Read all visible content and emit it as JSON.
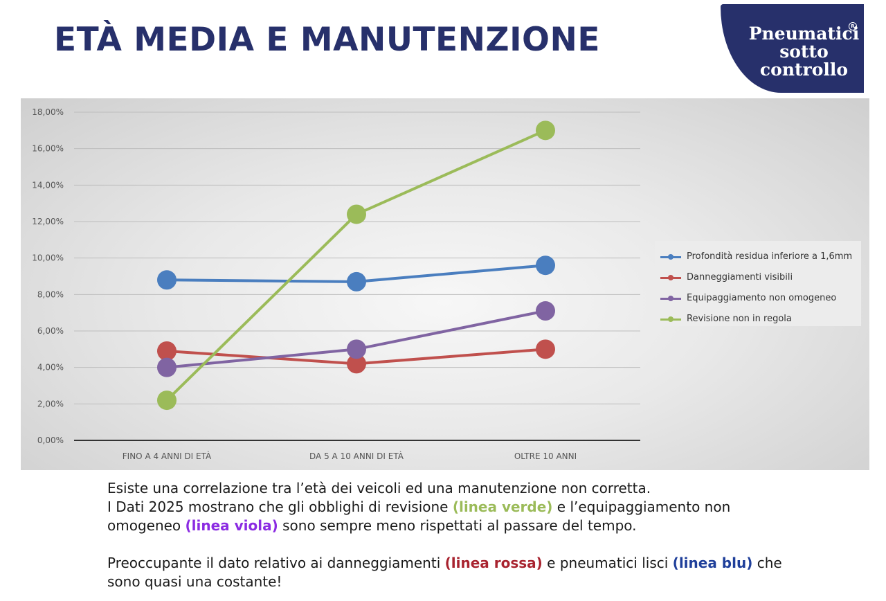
{
  "header": {
    "title": "ETÀ MEDIA E MANUTENZIONE",
    "logo_line1": "Pneumatici",
    "logo_line2": "sotto",
    "logo_line3": "controllo",
    "logo_reg": "R"
  },
  "chart_data": {
    "type": "line",
    "title": "",
    "xlabel": "",
    "ylabel": "",
    "categories": [
      "FINO A 4 ANNI DI ETÀ",
      "DA 5 A 10 ANNI DI ETÀ",
      "OLTRE 10 ANNI"
    ],
    "ylim": [
      0,
      18
    ],
    "yticks": [
      0,
      2,
      4,
      6,
      8,
      10,
      12,
      14,
      16,
      18
    ],
    "ytick_labels": [
      "0,00%",
      "2,00%",
      "4,00%",
      "6,00%",
      "8,00%",
      "10,00%",
      "12,00%",
      "14,00%",
      "16,00%",
      "18,00%"
    ],
    "grid": true,
    "legend_position": "right",
    "series": [
      {
        "name": "Profondità residua inferiore a 1,6mm",
        "color": "#4a7ebf",
        "values": [
          8.8,
          8.7,
          9.6
        ]
      },
      {
        "name": "Danneggiamenti visibili",
        "color": "#c0504d",
        "values": [
          4.9,
          4.2,
          5.0
        ]
      },
      {
        "name": "Equipaggiamento non omogeneo",
        "color": "#8064a2",
        "values": [
          4.0,
          5.0,
          7.1
        ]
      },
      {
        "name": "Revisione non in regola",
        "color": "#9bbb59",
        "values": [
          2.2,
          12.4,
          17.0
        ]
      }
    ]
  },
  "caption": {
    "p1_l1": "Esiste una correlazione tra l’età dei veicoli ed una manutenzione non corretta.",
    "p1_l2a": "I Dati 2025 mostrano che gli obblighi di revisione ",
    "p1_green": "(linea verde)",
    "p1_l2b": " e l’equipaggiamento non omogeneo ",
    "p1_violet": "(linea viola)",
    "p1_l3": " sono sempre meno rispettati al passare del tempo.",
    "p2a": "Preoccupante il dato relativo ai danneggiamenti ",
    "p2_red": "(linea rossa)",
    "p2b": " e pneumatici lisci ",
    "p2_blue": "(linea blu)",
    "p2c": " che sono quasi una costante!",
    "colors": {
      "green": "#9bbb59",
      "violet": "#8b2be2",
      "red": "#a8232f",
      "blue": "#1f3f9a"
    }
  }
}
